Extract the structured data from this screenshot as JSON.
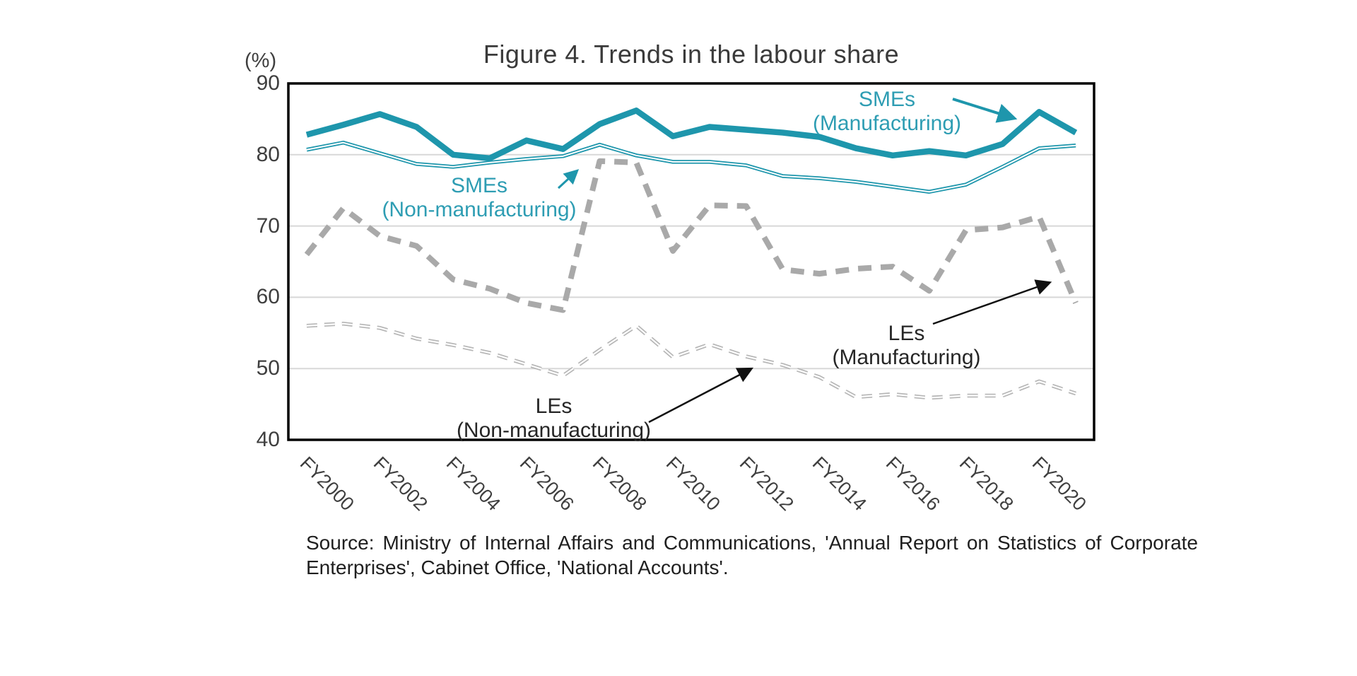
{
  "title": "Figure 4. Trends in the labour share",
  "y_axis_unit": "(%)",
  "chart_data": {
    "type": "line",
    "categories": [
      "FY2000",
      "FY2001",
      "FY2002",
      "FY2003",
      "FY2004",
      "FY2005",
      "FY2006",
      "FY2007",
      "FY2008",
      "FY2009",
      "FY2010",
      "FY2011",
      "FY2012",
      "FY2013",
      "FY2014",
      "FY2015",
      "FY2016",
      "FY2017",
      "FY2018",
      "FY2019",
      "FY2020",
      "FY2021"
    ],
    "x_tick_labels": [
      "FY2000",
      "FY2002",
      "FY2004",
      "FY2006",
      "FY2008",
      "FY2010",
      "FY2012",
      "FY2014",
      "FY2016",
      "FY2018",
      "FY2020"
    ],
    "ylim": [
      40,
      90
    ],
    "yticks": [
      90,
      80,
      70,
      60,
      50,
      40
    ],
    "grid": "horizontal",
    "legend_position": "inline-annotations",
    "series": [
      {
        "name": "SMEs (Manufacturing)",
        "style": "solid-thick",
        "color": "#1E96AC",
        "values": [
          82.8,
          84.2,
          85.7,
          83.9,
          80.0,
          79.5,
          82.0,
          80.8,
          84.3,
          86.2,
          82.6,
          83.9,
          83.5,
          83.1,
          82.5,
          80.9,
          79.9,
          80.5,
          79.9,
          81.5,
          86.0,
          83.1
        ]
      },
      {
        "name": "SMEs (Non-manufacturing)",
        "style": "double-thin",
        "color": "#1E96AC",
        "values": [
          80.7,
          81.7,
          80.2,
          78.7,
          78.3,
          78.9,
          79.4,
          79.8,
          81.4,
          79.9,
          79.0,
          79.0,
          78.5,
          77.0,
          76.7,
          76.2,
          75.5,
          74.8,
          75.8,
          78.3,
          80.9,
          81.3
        ]
      },
      {
        "name": "LEs (Manufacturing)",
        "style": "dashed-thick",
        "color": "#A9A9A9",
        "values": [
          66.0,
          72.5,
          68.6,
          67.2,
          62.5,
          61.2,
          59.2,
          58.2,
          79.1,
          78.9,
          66.5,
          72.9,
          72.8,
          63.9,
          63.3,
          64.0,
          64.3,
          60.9,
          69.4,
          69.8,
          71.3,
          59.2
        ]
      },
      {
        "name": "LEs (Non-manufacturing)",
        "style": "dashed-double-thin",
        "color": "#B5B5B5",
        "values": [
          56.0,
          56.3,
          55.7,
          54.2,
          53.3,
          52.2,
          50.6,
          49.0,
          52.6,
          56.0,
          51.6,
          53.4,
          51.7,
          50.5,
          48.8,
          46.0,
          46.4,
          45.9,
          46.2,
          46.2,
          48.2,
          46.5
        ]
      }
    ]
  },
  "annotations": [
    {
      "id": "smes-manufacturing",
      "line1": "SMEs",
      "line2": "(Manufacturing)",
      "color": "#2E9DB3"
    },
    {
      "id": "smes-non-manufacturing",
      "line1": "SMEs",
      "line2": "(Non-manufacturing)",
      "color": "#2E9DB3"
    },
    {
      "id": "les-manufacturing",
      "line1": "LEs",
      "line2": "(Manufacturing)",
      "color": "#262626"
    },
    {
      "id": "les-non-manufacturing",
      "line1": "LEs",
      "line2": "(Non-manufacturing)",
      "color": "#262626"
    }
  ],
  "source": {
    "line1": "Source: Ministry of Internal Affairs and Communications, 'Annual Report on Statistics of Corporate",
    "line2": "Enterprises', Cabinet Office, 'National Accounts'."
  },
  "colors": {
    "teal_line": "#1E96AC",
    "teal_text": "#2E9DB3",
    "gray_dash_thick": "#A9A9A9",
    "gray_dash_thin": "#B5B5B5",
    "gridline": "#D8D8D8",
    "axis_frame": "#000000",
    "axis_text": "#3F3F3F",
    "annotation_dark": "#262626"
  }
}
